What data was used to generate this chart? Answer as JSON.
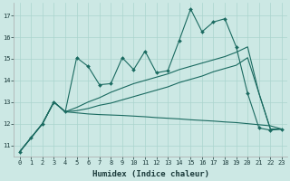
{
  "title": "",
  "xlabel": "Humidex (Indice chaleur)",
  "ylabel": "",
  "background_color": "#cce8e4",
  "grid_color": "#aad4ce",
  "line_color": "#1a6a60",
  "xlim": [
    -0.5,
    23.5
  ],
  "ylim": [
    10.5,
    17.6
  ],
  "xticks": [
    0,
    1,
    2,
    3,
    4,
    5,
    6,
    7,
    8,
    9,
    10,
    11,
    12,
    13,
    14,
    15,
    16,
    17,
    18,
    19,
    20,
    21,
    22,
    23
  ],
  "yticks": [
    11,
    12,
    13,
    14,
    15,
    16,
    17
  ],
  "series1_x": [
    0,
    1,
    2,
    3,
    4,
    5,
    6,
    7,
    8,
    9,
    10,
    11,
    12,
    13,
    14,
    15,
    16,
    17,
    18,
    19,
    20,
    21,
    22,
    23
  ],
  "series1_y": [
    10.7,
    11.35,
    12.0,
    13.0,
    12.55,
    15.05,
    14.65,
    13.8,
    13.85,
    15.05,
    14.5,
    15.35,
    14.35,
    14.45,
    15.85,
    17.3,
    16.25,
    16.7,
    16.85,
    15.55,
    13.4,
    11.8,
    11.7,
    11.75
  ],
  "series2_x": [
    0,
    1,
    2,
    3,
    4,
    5,
    6,
    7,
    8,
    9,
    10,
    11,
    12,
    13,
    14,
    15,
    16,
    17,
    18,
    19,
    20,
    21,
    22,
    23
  ],
  "series2_y": [
    10.7,
    11.35,
    12.0,
    13.0,
    12.55,
    12.5,
    12.45,
    12.42,
    12.4,
    12.38,
    12.35,
    12.32,
    12.28,
    12.25,
    12.22,
    12.18,
    12.15,
    12.12,
    12.08,
    12.05,
    12.0,
    11.95,
    11.9,
    11.75
  ],
  "series3_x": [
    0,
    1,
    2,
    3,
    4,
    5,
    6,
    7,
    8,
    9,
    10,
    11,
    12,
    13,
    14,
    15,
    16,
    17,
    18,
    19,
    20,
    21,
    22,
    23
  ],
  "series3_y": [
    10.7,
    11.35,
    12.0,
    13.0,
    12.55,
    12.75,
    13.0,
    13.2,
    13.45,
    13.65,
    13.85,
    14.0,
    14.15,
    14.3,
    14.5,
    14.65,
    14.8,
    14.95,
    15.1,
    15.3,
    15.55,
    13.4,
    11.75,
    11.75
  ],
  "series4_x": [
    0,
    1,
    2,
    3,
    4,
    5,
    6,
    7,
    8,
    9,
    10,
    11,
    12,
    13,
    14,
    15,
    16,
    17,
    18,
    19,
    20,
    21,
    22,
    23
  ],
  "series4_y": [
    10.7,
    11.35,
    12.0,
    13.0,
    12.55,
    12.6,
    12.7,
    12.85,
    12.95,
    13.1,
    13.25,
    13.4,
    13.55,
    13.7,
    13.9,
    14.05,
    14.2,
    14.4,
    14.55,
    14.7,
    15.05,
    13.4,
    11.75,
    11.75
  ]
}
